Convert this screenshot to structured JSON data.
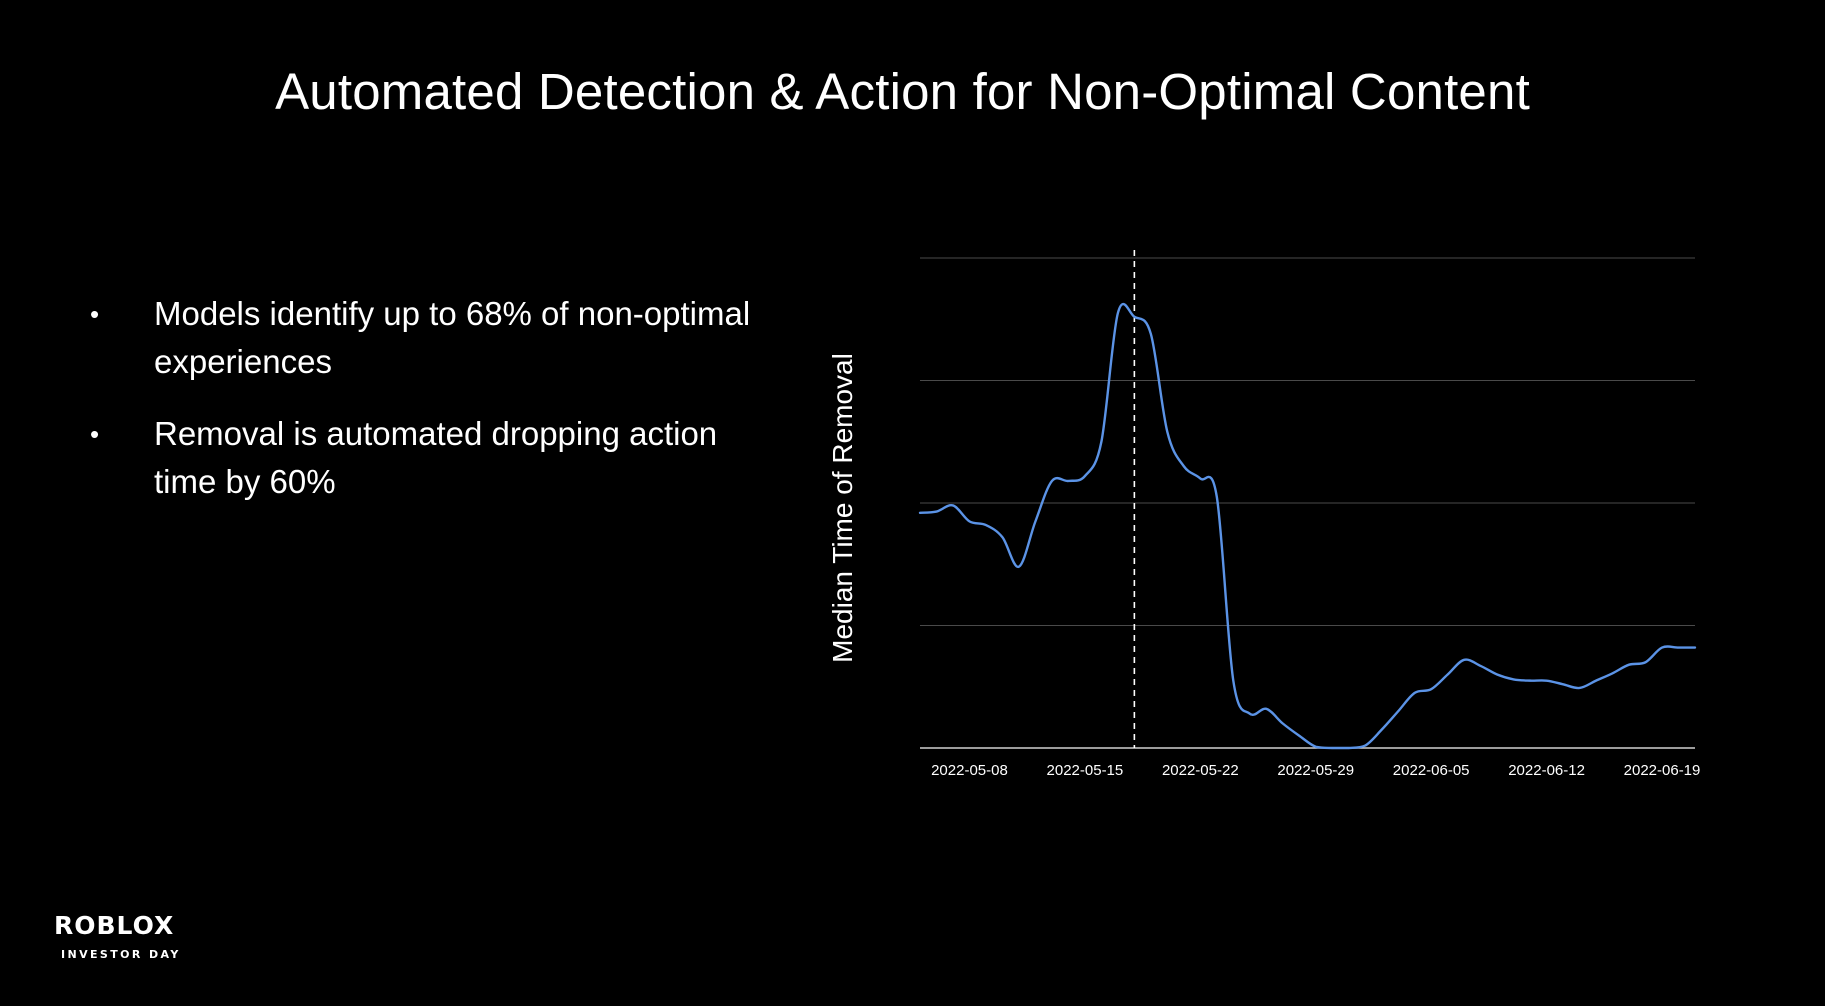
{
  "slide": {
    "title": "Automated Detection & Action for Non-Optimal Content",
    "bullets": [
      "Models identify up to 68% of non-optimal experiences",
      "Removal is automated dropping action time by 60%"
    ]
  },
  "brand": {
    "logo_text": "ROBLOX",
    "subtitle": "INVESTOR DAY"
  },
  "colors": {
    "background": "#000000",
    "text": "#ffffff",
    "line": "#5b93e6",
    "grid": "#4a4a4a",
    "marker": "#ffffff"
  },
  "chart_data": {
    "type": "line",
    "title": "",
    "xlabel": "",
    "ylabel": "Median Time of Removal",
    "x_axis": "date",
    "x_range": [
      "2022-05-05",
      "2022-06-21"
    ],
    "x_ticks": [
      "2022-05-08",
      "2022-05-15",
      "2022-05-22",
      "2022-05-29",
      "2022-06-05",
      "2022-06-12",
      "2022-06-19"
    ],
    "y_range": [
      0,
      4
    ],
    "y_ticks": [
      0,
      1,
      2,
      3,
      4
    ],
    "y_tick_labels_shown": false,
    "grid": true,
    "marker_line": {
      "x": "2022-05-18",
      "style": "dashed"
    },
    "series": [
      {
        "name": "Median Time of Removal",
        "x": [
          "2022-05-05",
          "2022-05-06",
          "2022-05-07",
          "2022-05-08",
          "2022-05-09",
          "2022-05-10",
          "2022-05-11",
          "2022-05-12",
          "2022-05-13",
          "2022-05-14",
          "2022-05-15",
          "2022-05-16",
          "2022-05-17",
          "2022-05-18",
          "2022-05-19",
          "2022-05-20",
          "2022-05-21",
          "2022-05-22",
          "2022-05-23",
          "2022-05-24",
          "2022-05-25",
          "2022-05-26",
          "2022-05-27",
          "2022-05-28",
          "2022-05-29",
          "2022-05-30",
          "2022-05-31",
          "2022-06-01",
          "2022-06-02",
          "2022-06-03",
          "2022-06-04",
          "2022-06-05",
          "2022-06-06",
          "2022-06-07",
          "2022-06-08",
          "2022-06-09",
          "2022-06-10",
          "2022-06-11",
          "2022-06-12",
          "2022-06-13",
          "2022-06-14",
          "2022-06-15",
          "2022-06-16",
          "2022-06-17",
          "2022-06-18",
          "2022-06-19",
          "2022-06-20",
          "2022-06-21"
        ],
        "values": [
          1.92,
          1.93,
          1.98,
          1.85,
          1.82,
          1.72,
          1.48,
          1.85,
          2.18,
          2.18,
          2.22,
          2.5,
          3.55,
          3.52,
          3.38,
          2.58,
          2.3,
          2.2,
          2.05,
          0.55,
          0.28,
          0.32,
          0.2,
          0.1,
          0.01,
          0.0,
          0.0,
          0.02,
          0.15,
          0.3,
          0.45,
          0.48,
          0.6,
          0.72,
          0.67,
          0.6,
          0.56,
          0.55,
          0.55,
          0.52,
          0.49,
          0.55,
          0.61,
          0.68,
          0.7,
          0.82,
          0.82,
          0.82
        ]
      }
    ]
  }
}
